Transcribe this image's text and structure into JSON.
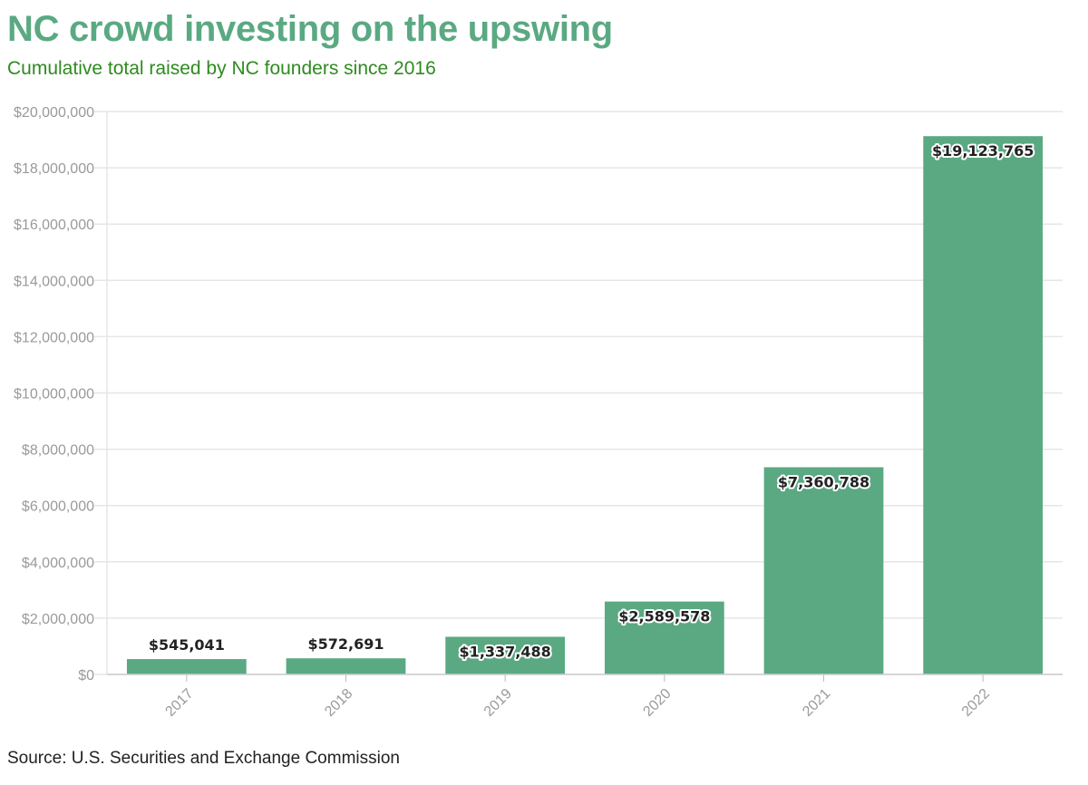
{
  "title": "NC crowd investing on the upswing",
  "subtitle": "Cumulative total raised by NC founders since 2016",
  "source": "Source: U.S. Securities and Exchange Commission",
  "colors": {
    "bar": "#5aa982",
    "title": "#5aa982",
    "subtitle": "#2e8b1f",
    "grid": "#e6e6e6",
    "tick_text": "#9a9a9a"
  },
  "chart_data": {
    "type": "bar",
    "title": "NC crowd investing on the upswing",
    "subtitle": "Cumulative total raised by NC founders since 2016",
    "categories": [
      "2017",
      "2018",
      "2019",
      "2020",
      "2021",
      "2022"
    ],
    "values": [
      545041,
      572691,
      1337488,
      2589578,
      7360788,
      19123765
    ],
    "data_labels": [
      "$545,041",
      "$572,691",
      "$1,337,488",
      "$2,589,578",
      "$7,360,788",
      "$19,123,765"
    ],
    "xlabel": "",
    "ylabel": "",
    "ylim": [
      0,
      20000000
    ],
    "yticks": [
      0,
      2000000,
      4000000,
      6000000,
      8000000,
      10000000,
      12000000,
      14000000,
      16000000,
      18000000,
      20000000
    ],
    "ytick_labels": [
      "$0",
      "$2,000,000",
      "$4,000,000",
      "$6,000,000",
      "$8,000,000",
      "$10,000,000",
      "$12,000,000",
      "$14,000,000",
      "$16,000,000",
      "$18,000,000",
      "$20,000,000"
    ],
    "grid": true,
    "legend": false
  }
}
